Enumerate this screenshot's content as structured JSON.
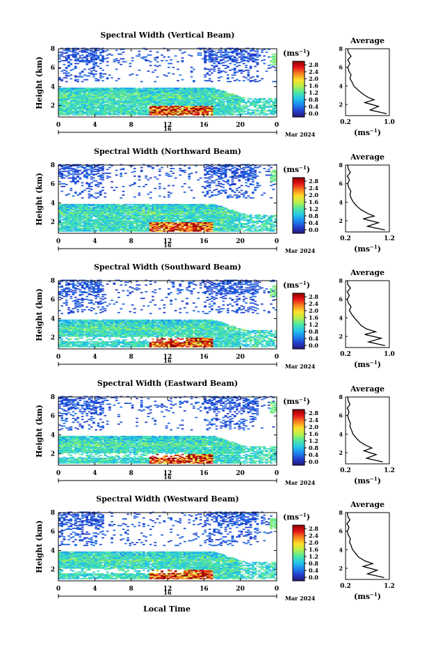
{
  "figure": {
    "xlabel": "Local Time",
    "date_label": "Mar 2024",
    "day_label": "16"
  },
  "colorbar": {
    "unit": "(ms⁻¹)",
    "ticks": [
      "2.8",
      "2.4",
      "2.0",
      "1.6",
      "1.2",
      "0.8",
      "0.4",
      "0.0"
    ],
    "stops": [
      "#8b0000",
      "#e8141a",
      "#f7841e",
      "#fde02a",
      "#b8f04a",
      "#4ee8a0",
      "#26c8e8",
      "#1e88f0",
      "#2440d0",
      "#231a78"
    ]
  },
  "avg_panel": {
    "title": "Average",
    "unit": "(ms⁻¹)"
  },
  "chart_data": [
    {
      "type": "heatmap",
      "title": "Spectral Width (Vertical Beam)",
      "ylabel": "Height (km)",
      "xlabel": "Local Time",
      "x_ticks": [
        "0",
        "4",
        "8",
        "12",
        "16",
        "20",
        "0"
      ],
      "y_ticks": [
        "8",
        "6",
        "4",
        "2"
      ],
      "xlim": [
        0,
        24
      ],
      "ylim": [
        0.8,
        8
      ],
      "clim": [
        0,
        2.8
      ],
      "avg_x_ticks": [
        "0.2",
        "1.0"
      ],
      "avg_xlim": [
        0.2,
        1.0
      ],
      "avg_profile": {
        "height": [
          1.0,
          1.4,
          1.8,
          2.2,
          2.5,
          2.8,
          3.2,
          3.6,
          4.0,
          4.4,
          4.8,
          5.2,
          5.6,
          6.0,
          6.4,
          6.8,
          7.2,
          7.6,
          8.0
        ],
        "value": [
          0.95,
          0.65,
          0.8,
          0.55,
          0.72,
          0.6,
          0.5,
          0.42,
          0.35,
          0.32,
          0.28,
          0.3,
          0.26,
          0.24,
          0.28,
          0.24,
          0.3,
          0.25,
          0.24
        ]
      }
    },
    {
      "type": "heatmap",
      "title": "Spectral Width (Northward Beam)",
      "ylabel": "Height (km)",
      "xlabel": "Local Time",
      "x_ticks": [
        "0",
        "4",
        "8",
        "12",
        "16",
        "20",
        "0"
      ],
      "y_ticks": [
        "8",
        "6",
        "4",
        "2"
      ],
      "xlim": [
        0,
        24
      ],
      "ylim": [
        0.8,
        8
      ],
      "clim": [
        0,
        2.8
      ],
      "avg_x_ticks": [
        "0.2",
        "1.2"
      ],
      "avg_xlim": [
        0.2,
        1.2
      ],
      "avg_profile": {
        "height": [
          1.0,
          1.4,
          1.8,
          2.2,
          2.5,
          2.8,
          3.2,
          3.6,
          4.0,
          4.4,
          4.8,
          5.2,
          5.6,
          6.0,
          6.4,
          6.8,
          7.2,
          7.6,
          8.0
        ],
        "value": [
          1.1,
          0.7,
          0.95,
          0.6,
          0.85,
          0.7,
          0.55,
          0.45,
          0.38,
          0.33,
          0.3,
          0.32,
          0.27,
          0.25,
          0.29,
          0.24,
          0.31,
          0.26,
          0.25
        ]
      }
    },
    {
      "type": "heatmap",
      "title": "Spectral Width (Southward Beam)",
      "ylabel": "Height (km)",
      "xlabel": "Local Time",
      "x_ticks": [
        "0",
        "4",
        "8",
        "12",
        "16",
        "20",
        "0"
      ],
      "y_ticks": [
        "8",
        "6",
        "4",
        "2"
      ],
      "xlim": [
        0,
        24
      ],
      "ylim": [
        0.8,
        8
      ],
      "clim": [
        0,
        2.8
      ],
      "avg_x_ticks": [
        "0.2",
        "1.0"
      ],
      "avg_xlim": [
        0.2,
        1.0
      ],
      "avg_profile": {
        "height": [
          1.0,
          1.4,
          1.8,
          2.2,
          2.5,
          2.8,
          3.2,
          3.6,
          4.0,
          4.4,
          4.8,
          5.2,
          5.6,
          6.0,
          6.4,
          6.8,
          7.2,
          7.6,
          8.0
        ],
        "value": [
          0.92,
          0.62,
          0.85,
          0.55,
          0.75,
          0.58,
          0.48,
          0.42,
          0.36,
          0.31,
          0.27,
          0.3,
          0.25,
          0.23,
          0.27,
          0.23,
          0.29,
          0.24,
          0.23
        ]
      }
    },
    {
      "type": "heatmap",
      "title": "Spectral Width (Eastward Beam)",
      "ylabel": "Height (km)",
      "xlabel": "Local Time",
      "x_ticks": [
        "0",
        "4",
        "8",
        "12",
        "16",
        "20",
        "0"
      ],
      "y_ticks": [
        "8",
        "6",
        "4",
        "2"
      ],
      "xlim": [
        0,
        24
      ],
      "ylim": [
        0.8,
        8
      ],
      "clim": [
        0,
        2.8
      ],
      "avg_x_ticks": [
        "0.2",
        "1.2"
      ],
      "avg_xlim": [
        0.2,
        1.2
      ],
      "avg_profile": {
        "height": [
          1.0,
          1.4,
          1.8,
          2.2,
          2.5,
          2.8,
          3.2,
          3.6,
          4.0,
          4.4,
          4.8,
          5.2,
          5.6,
          6.0,
          6.4,
          6.8,
          7.2,
          7.6,
          8.0
        ],
        "value": [
          1.05,
          0.68,
          0.9,
          0.62,
          0.8,
          0.66,
          0.52,
          0.44,
          0.37,
          0.34,
          0.3,
          0.31,
          0.27,
          0.25,
          0.28,
          0.24,
          0.3,
          0.26,
          0.25
        ]
      }
    },
    {
      "type": "heatmap",
      "title": "Spectral Width (Westward Beam)",
      "ylabel": "Height (km)",
      "xlabel": "Local Time",
      "x_ticks": [
        "0",
        "4",
        "8",
        "12",
        "16",
        "20",
        "0"
      ],
      "y_ticks": [
        "8",
        "6",
        "4",
        "2"
      ],
      "xlim": [
        0,
        24
      ],
      "ylim": [
        0.8,
        8
      ],
      "clim": [
        0,
        2.8
      ],
      "avg_x_ticks": [
        "0.2",
        "1.2"
      ],
      "avg_xlim": [
        0.2,
        1.2
      ],
      "avg_profile": {
        "height": [
          1.0,
          1.4,
          1.8,
          2.2,
          2.5,
          2.8,
          3.2,
          3.6,
          4.0,
          4.4,
          4.8,
          5.2,
          5.6,
          6.0,
          6.4,
          6.8,
          7.2,
          7.6,
          8.0
        ],
        "value": [
          1.08,
          0.7,
          0.92,
          0.6,
          0.82,
          0.64,
          0.5,
          0.43,
          0.36,
          0.33,
          0.29,
          0.31,
          0.26,
          0.24,
          0.28,
          0.23,
          0.3,
          0.25,
          0.24
        ]
      }
    }
  ]
}
